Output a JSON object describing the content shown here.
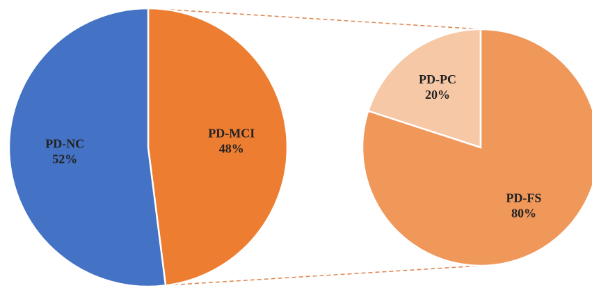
{
  "chart_data": [
    {
      "type": "pie",
      "categories": [
        "PD-MCI",
        "PD-NC"
      ],
      "values": [
        48,
        52
      ],
      "value_labels": [
        "48%",
        "52%"
      ],
      "colors": [
        "#ed7d31",
        "#4472c4"
      ],
      "direction": "clockwise"
    },
    {
      "type": "pie",
      "categories": [
        "PD-PC",
        "PD-FS"
      ],
      "values": [
        20,
        80
      ],
      "value_labels": [
        "20%",
        "80%"
      ],
      "colors": [
        "#f6c8a5",
        "#f0975a"
      ],
      "direction": "counterclockwise"
    }
  ]
}
